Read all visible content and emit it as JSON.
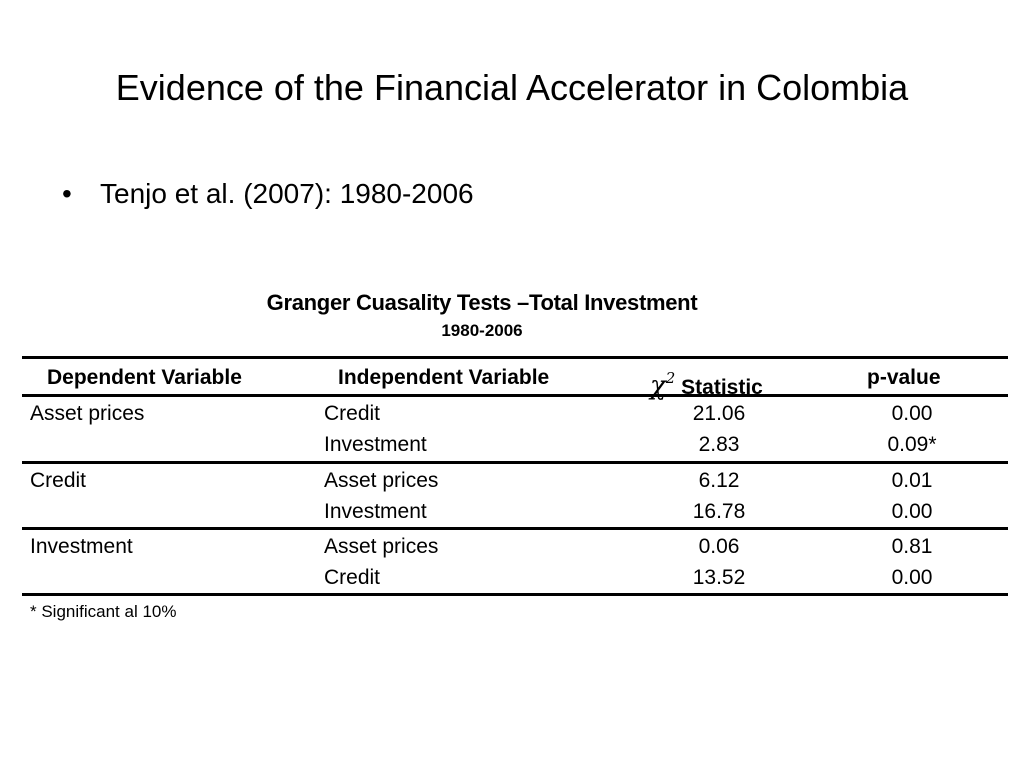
{
  "slide": {
    "title": "Evidence of the Financial Accelerator in Colombia",
    "bullets": [
      {
        "marker": "•",
        "text": "Tenjo et al. (2007): 1980-2006"
      }
    ]
  },
  "table": {
    "title": "Granger Cuasality Tests –Total Investment",
    "subtitle": "1980-2006",
    "headers": {
      "dependent": "Dependent Variable",
      "independent": "Independent Variable",
      "chi_symbol": "χ",
      "chi_exponent": "2",
      "statistic": "Statistic",
      "pvalue": "p-value"
    },
    "groups": [
      {
        "dependent": "Asset prices",
        "rows": [
          {
            "independent": "Credit",
            "statistic": "21.06",
            "pvalue": "0.00"
          },
          {
            "independent": "Investment",
            "statistic": "2.83",
            "pvalue": "0.09*"
          }
        ]
      },
      {
        "dependent": "Credit",
        "rows": [
          {
            "independent": "Asset prices",
            "statistic": "6.12",
            "pvalue": "0.01"
          },
          {
            "independent": "Investment",
            "statistic": "16.78",
            "pvalue": "0.00"
          }
        ]
      },
      {
        "dependent": "Investment",
        "rows": [
          {
            "independent": "Asset prices",
            "statistic": "0.06",
            "pvalue": "0.81"
          },
          {
            "independent": "Credit",
            "statistic": "13.52",
            "pvalue": "0.00"
          }
        ]
      }
    ],
    "footnote": "* Significant al 10%"
  }
}
